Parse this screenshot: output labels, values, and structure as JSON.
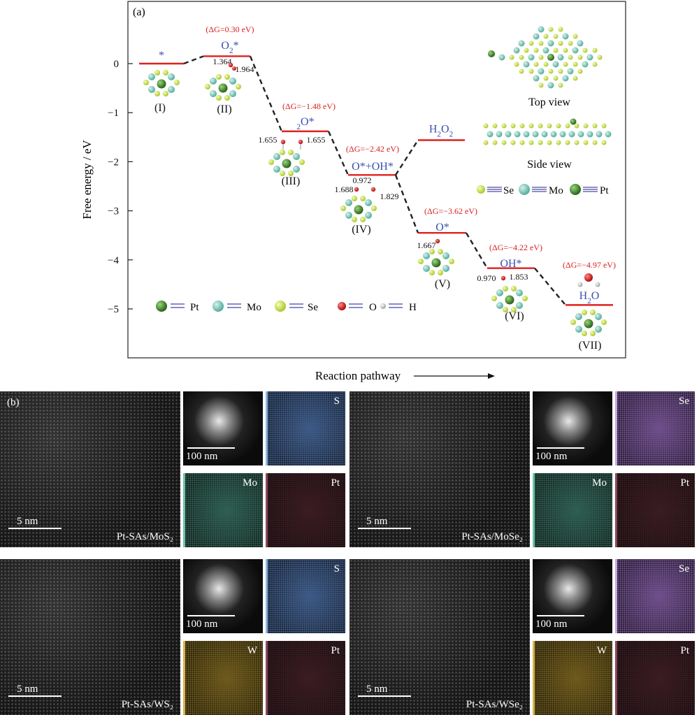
{
  "panel_a": {
    "label": "(a)",
    "ylabel": "Free energy / eV",
    "xlabel": "Reaction pathway",
    "yticks": [
      "0",
      "−1",
      "−2",
      "−3",
      "−4",
      "−5"
    ],
    "states": [
      {
        "roman": "(I)",
        "species": "*",
        "energy": 0.0
      },
      {
        "roman": "(II)",
        "species": "O2*",
        "energy": 0.15,
        "dG": "(ΔG=0.30 eV)"
      },
      {
        "roman": "(III)",
        "species": "2O*",
        "energy": -1.38,
        "dG": "(ΔG=−1.48 eV)"
      },
      {
        "roman": "(IV)",
        "species": "O*+OH*",
        "energy": -2.27,
        "dG": "(ΔG=−2.42 eV)"
      },
      {
        "roman": "(V)",
        "species": "O*",
        "energy": -3.45,
        "dG": "(ΔG=−3.62 eV)"
      },
      {
        "roman": "(VI)",
        "species": "OH*",
        "energy": -4.17,
        "dG": "(ΔG=−4.22 eV)"
      },
      {
        "roman": "(VII)",
        "species": "H2O",
        "energy": -4.92,
        "dG": "(ΔG=−4.97 eV)"
      }
    ],
    "h2o2_label": "H2O2",
    "h2o2_energy": -1.56,
    "bond_labels": {
      "ii_a": "1.364",
      "ii_b": "1.964",
      "iii_a": "1.655",
      "iii_b": "1.655",
      "iv_a": "1.688",
      "iv_b": "0.972",
      "iv_c": "1.829",
      "v_a": "1.667",
      "vi_a": "0.970",
      "vi_b": "1.853"
    },
    "top_view": "Top view",
    "side_view": "Side view",
    "inset_legend": [
      "Se",
      "Mo",
      "Pt"
    ],
    "legend": [
      "Pt",
      "Mo",
      "Se",
      "O",
      "H"
    ],
    "colors": {
      "level": "#e02020",
      "species": "#3a4fb0",
      "dG": "#d82020",
      "Pt": "#2f7a1f",
      "Mo": "#6cc4b2",
      "Se": "#c9e04a",
      "O": "#d01818",
      "H": "#e8e8e8"
    }
  },
  "panel_b": {
    "label": "(b)",
    "blocks": [
      {
        "sample": "Pt-SAs/MoS₂",
        "scale_main": "5 nm",
        "scale_eds": "100 nm",
        "maps": [
          "S",
          "Mo",
          "Pt"
        ]
      },
      {
        "sample": "Pt-SAs/MoSe₂",
        "scale_main": "5 nm",
        "scale_eds": "100 nm",
        "maps": [
          "Se",
          "Mo",
          "Pt"
        ]
      },
      {
        "sample": "Pt-SAs/WS₂",
        "scale_main": "5 nm",
        "scale_eds": "100 nm",
        "maps": [
          "S",
          "W",
          "Pt"
        ]
      },
      {
        "sample": "Pt-SAs/WSe₂",
        "scale_main": "5 nm",
        "scale_eds": "100 nm",
        "maps": [
          "Se",
          "W",
          "Pt"
        ]
      }
    ]
  }
}
